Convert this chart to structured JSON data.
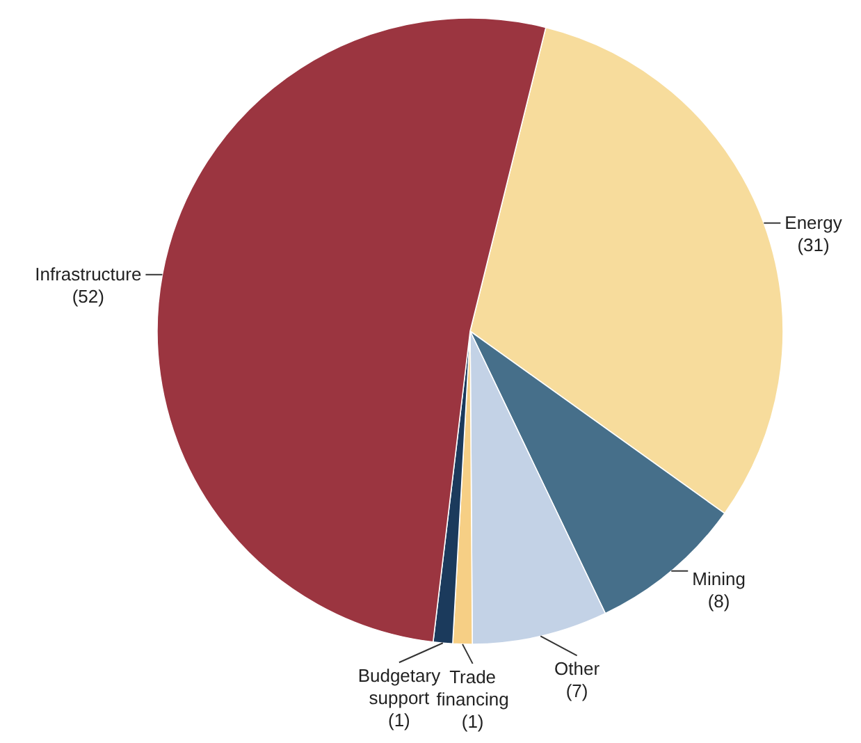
{
  "chart_data": {
    "type": "pie",
    "categories": [
      "Energy",
      "Mining",
      "Other",
      "Trade financing",
      "Budgetary support",
      "Infrastructure"
    ],
    "values": [
      31,
      8,
      7,
      1,
      1,
      52
    ],
    "value_labels": [
      "(31)",
      "(8)",
      "(7)",
      "(1)",
      "(1)",
      "(52)"
    ],
    "colors": [
      "#f7dc9c",
      "#466f8a",
      "#c3d2e6",
      "#f6cf85",
      "#1b3a5c",
      "#9b3540"
    ]
  }
}
